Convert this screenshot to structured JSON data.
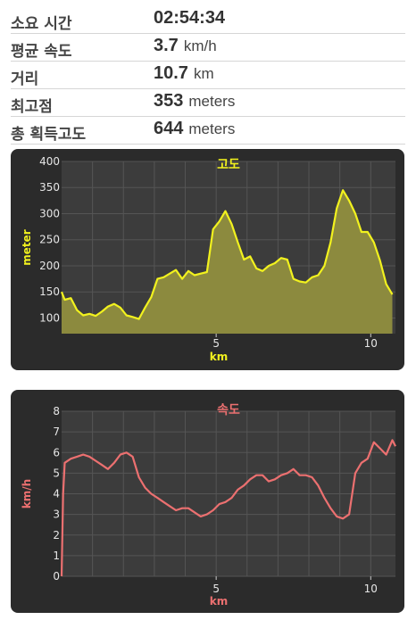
{
  "stats": [
    {
      "label": "소요 시간",
      "value": "02:54:34",
      "unit": ""
    },
    {
      "label": "평균 속도",
      "value": "3.7",
      "unit": "km/h"
    },
    {
      "label": "거리",
      "value": "10.7",
      "unit": "km"
    },
    {
      "label": "최고점",
      "value": "353",
      "unit": "meters"
    },
    {
      "label": "총 획득고도",
      "value": "644",
      "unit": "meters"
    }
  ],
  "colors": {
    "card_bg": "#2b2b2b",
    "plot_bg": "#3c3c3c",
    "grid": "#555555",
    "elev_line": "#f2f21e",
    "elev_fill": "#8c8a3e",
    "speed_line": "#ec7070",
    "speed_title": "#ec7070"
  },
  "chart_data": [
    {
      "type": "area",
      "title": "고도",
      "xlabel": "km",
      "ylabel": "meter",
      "xlim": [
        0,
        10.8
      ],
      "ylim": [
        70,
        400
      ],
      "xticks": [
        5,
        10
      ],
      "yticks": [
        100,
        150,
        200,
        250,
        300,
        350,
        400
      ],
      "grid": true,
      "x": [
        0,
        0.1,
        0.3,
        0.5,
        0.7,
        0.9,
        1.1,
        1.3,
        1.5,
        1.7,
        1.9,
        2.1,
        2.3,
        2.5,
        2.7,
        2.9,
        3.1,
        3.3,
        3.5,
        3.7,
        3.9,
        4.1,
        4.3,
        4.5,
        4.7,
        4.9,
        5.1,
        5.3,
        5.5,
        5.7,
        5.9,
        6.1,
        6.3,
        6.5,
        6.7,
        6.9,
        7.1,
        7.3,
        7.5,
        7.7,
        7.9,
        8.1,
        8.3,
        8.5,
        8.7,
        8.9,
        9.1,
        9.3,
        9.5,
        9.7,
        9.9,
        10.1,
        10.3,
        10.5,
        10.7
      ],
      "values": [
        150,
        135,
        138,
        115,
        105,
        108,
        104,
        112,
        122,
        127,
        120,
        105,
        102,
        98,
        120,
        140,
        175,
        178,
        185,
        192,
        175,
        190,
        182,
        185,
        188,
        270,
        285,
        305,
        280,
        245,
        212,
        218,
        195,
        190,
        200,
        205,
        215,
        212,
        175,
        170,
        168,
        178,
        182,
        200,
        245,
        310,
        345,
        325,
        300,
        265,
        265,
        245,
        210,
        165,
        145
      ]
    },
    {
      "type": "line",
      "title": "속도",
      "xlabel": "km",
      "ylabel": "km/h",
      "xlim": [
        0,
        10.8
      ],
      "ylim": [
        0,
        8
      ],
      "xticks": [
        5,
        10
      ],
      "yticks": [
        0,
        1,
        2,
        3,
        4,
        5,
        6,
        7,
        8
      ],
      "grid": true,
      "x": [
        0,
        0.05,
        0.1,
        0.3,
        0.5,
        0.7,
        0.9,
        1.1,
        1.3,
        1.5,
        1.7,
        1.9,
        2.1,
        2.3,
        2.5,
        2.7,
        2.9,
        3.1,
        3.3,
        3.5,
        3.7,
        3.9,
        4.1,
        4.3,
        4.5,
        4.7,
        4.9,
        5.1,
        5.3,
        5.5,
        5.7,
        5.9,
        6.1,
        6.3,
        6.5,
        6.7,
        6.9,
        7.1,
        7.3,
        7.5,
        7.7,
        7.9,
        8.1,
        8.3,
        8.5,
        8.7,
        8.9,
        9.1,
        9.3,
        9.5,
        9.7,
        9.9,
        10.1,
        10.3,
        10.5,
        10.7,
        10.8
      ],
      "values": [
        0,
        4,
        5.5,
        5.7,
        5.8,
        5.9,
        5.8,
        5.6,
        5.4,
        5.2,
        5.5,
        5.9,
        6.0,
        5.8,
        4.8,
        4.3,
        4.0,
        3.8,
        3.6,
        3.4,
        3.2,
        3.3,
        3.3,
        3.1,
        2.9,
        3.0,
        3.2,
        3.5,
        3.6,
        3.8,
        4.2,
        4.4,
        4.7,
        4.9,
        4.9,
        4.6,
        4.7,
        4.9,
        5.0,
        5.2,
        4.9,
        4.9,
        4.8,
        4.4,
        3.8,
        3.3,
        2.9,
        2.8,
        3.0,
        5.0,
        5.5,
        5.7,
        6.5,
        6.2,
        5.9,
        6.6,
        6.3
      ]
    }
  ]
}
